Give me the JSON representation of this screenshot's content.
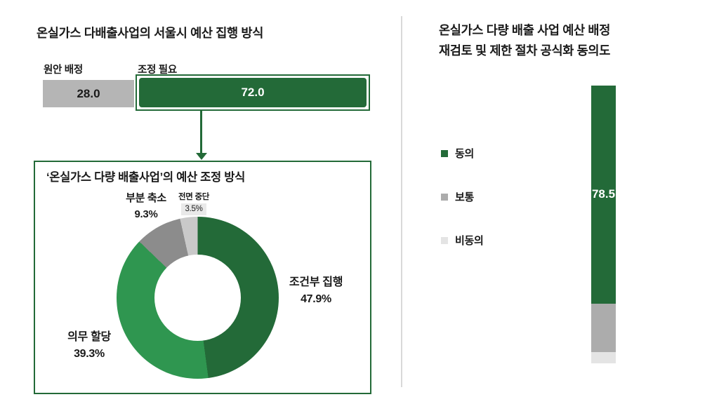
{
  "left_panel": {
    "title": "온실가스 다배출사업의 서울시 예산 집행 방식",
    "detail_box_title": "‘온실가스 다량 배출사업’의 예산 조정 방식"
  },
  "right_panel": {
    "title_line1": "온실가스 다량 배출 사업 예산 배정",
    "title_line2": "재검토 및 제한 절차 공식화 동의도"
  },
  "chart_data": [
    {
      "type": "bar",
      "subtype": "horizontal-stacked",
      "title": "온실가스 다배출사업의 서울시 예산 집행 방식",
      "categories": [
        "원안 배정",
        "조정 필요"
      ],
      "values": [
        28.0,
        72.0
      ],
      "display_values": [
        "28.0",
        "72.0"
      ],
      "colors": [
        "#B5B5B5",
        "#236A38"
      ],
      "xlim": [
        0,
        100
      ],
      "highlight": "조정 필요 segment outlined in green; arrow points down to breakdown donut"
    },
    {
      "type": "pie",
      "subtype": "donut",
      "title": "‘온실가스 다량 배출사업’의 예산 조정 방식",
      "labels": [
        "조건부 집행",
        "의무 할당",
        "부분 축소",
        "전면 중단"
      ],
      "values": [
        47.9,
        39.3,
        9.3,
        3.5
      ],
      "display_values": [
        "47.9%",
        "39.3%",
        "9.3%",
        "3.5%"
      ],
      "colors": [
        "#236A38",
        "#2F9650",
        "#8C8C8C",
        "#C9C9C9"
      ],
      "start_angle_deg": 0,
      "direction": "clockwise"
    },
    {
      "type": "bar",
      "subtype": "vertical-stacked",
      "title": "온실가스 다량 배출 사업 예산 배정 재검토 및 제한 절차 공식화 동의도",
      "categories": [
        "동의",
        "보통",
        "비동의"
      ],
      "values": [
        78.5,
        17.5,
        4.0
      ],
      "display_values": [
        "78.5",
        "",
        ""
      ],
      "values_estimated": [
        false,
        true,
        true
      ],
      "colors": [
        "#236A38",
        "#ACACAC",
        "#E4E4E4"
      ],
      "legend_position": "left"
    }
  ]
}
